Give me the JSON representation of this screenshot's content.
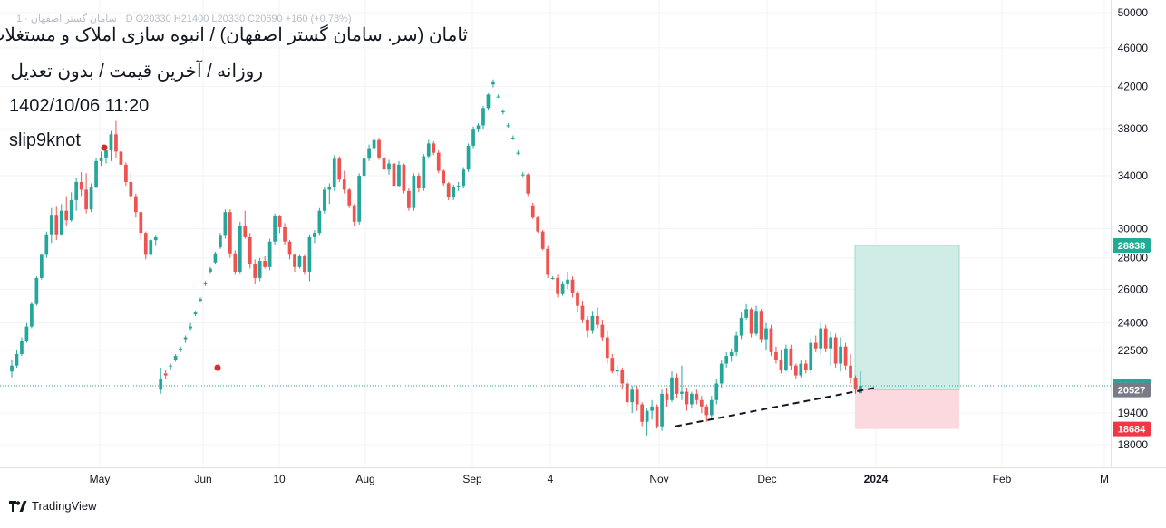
{
  "header": {
    "title": "ثامان (سر. سامان گستر اصفهان) / انبوه سازی املاک و مستغلات",
    "subtitle": "روزانه / آخرین قیمت / بدون تعدیل",
    "datetime": "1402/10/06 11:20",
    "author": "slip9knot",
    "faded_legend": "سامان گستر اصفهان · 1 · D  O20330  H21400  L20330  C20690  +160 (+0.78%)"
  },
  "brand": {
    "name": "TradingView"
  },
  "colors": {
    "up": "#26a69a",
    "down": "#ef5350",
    "target_zone": "#cfece7",
    "stop_zone": "#fcd9de",
    "target_tag": "#22ab94",
    "entry_tag": "#787b86",
    "stop_tag": "#f23645"
  },
  "chart_data": {
    "type": "candlestick",
    "scale": "log",
    "ylim": [
      17000,
      51000
    ],
    "y_ticks": [
      50000,
      46000,
      42000,
      38000,
      34000,
      30000,
      28000,
      26000,
      24000,
      22500,
      19400,
      18000
    ],
    "x_ticks": [
      "May",
      "Jun",
      "10",
      "Aug",
      "Sep",
      "4",
      "Nov",
      "Dec",
      "2024",
      "Feb",
      "M"
    ],
    "last_price": 20690,
    "position": {
      "target": 28838,
      "entry": 20527,
      "stop": 18684
    },
    "trendline": {
      "from": {
        "date": "Nov 5",
        "price": 18800
      },
      "to": {
        "date": "Dec 27",
        "price": 20600
      },
      "style": "dashed"
    },
    "candles": [
      [
        21400,
        22000,
        21100,
        21700
      ],
      [
        21700,
        22500,
        21600,
        22300
      ],
      [
        22300,
        23200,
        22200,
        23000
      ],
      [
        23000,
        24000,
        22900,
        23800
      ],
      [
        23800,
        25200,
        23700,
        25100
      ],
      [
        25100,
        26800,
        25000,
        26700
      ],
      [
        26700,
        28300,
        26600,
        28200
      ],
      [
        28200,
        29800,
        28000,
        29600
      ],
      [
        29600,
        31500,
        29000,
        31000
      ],
      [
        31000,
        31600,
        29200,
        29600
      ],
      [
        29600,
        31800,
        29500,
        31300
      ],
      [
        31300,
        32400,
        30200,
        30600
      ],
      [
        30600,
        32700,
        30500,
        32100
      ],
      [
        32100,
        33800,
        31300,
        33500
      ],
      [
        33500,
        34300,
        32400,
        32900
      ],
      [
        32900,
        34200,
        31100,
        31400
      ],
      [
        31400,
        33400,
        31200,
        33100
      ],
      [
        33100,
        35500,
        33000,
        35200
      ],
      [
        35200,
        36000,
        34800,
        35500
      ],
      [
        35500,
        36300,
        35000,
        36100
      ],
      [
        36100,
        37800,
        35200,
        37500
      ],
      [
        37500,
        38700,
        35500,
        36000
      ],
      [
        36000,
        37100,
        34800,
        34900
      ],
      [
        34900,
        35100,
        33200,
        33500
      ],
      [
        33500,
        34300,
        32100,
        32400
      ],
      [
        32400,
        32600,
        30800,
        31200
      ],
      [
        31200,
        31300,
        29200,
        29700
      ],
      [
        29700,
        29800,
        27900,
        28200
      ],
      [
        28200,
        29300,
        28100,
        29200
      ],
      [
        29200,
        29500,
        28800,
        29400
      ],
      [
        20500,
        21600,
        20300,
        21000
      ],
      [
        21300,
        21500,
        21000,
        21200
      ],
      [
        21700,
        21800,
        21500,
        21700
      ],
      [
        22000,
        22300,
        21900,
        22200
      ],
      [
        22500,
        22700,
        22400,
        22600
      ],
      [
        23100,
        23300,
        22900,
        23200
      ],
      [
        23700,
        24000,
        23600,
        23800
      ],
      [
        24500,
        24700,
        24400,
        24600
      ],
      [
        25300,
        25500,
        25200,
        25400
      ],
      [
        26300,
        26500,
        26200,
        26400
      ],
      [
        27100,
        27400,
        27000,
        27300
      ],
      [
        27700,
        28400,
        27600,
        28300
      ],
      [
        28700,
        29700,
        28600,
        29500
      ],
      [
        29500,
        31400,
        29300,
        31200
      ],
      [
        31200,
        31400,
        28000,
        28300
      ],
      [
        28300,
        28500,
        26900,
        27100
      ],
      [
        27100,
        30500,
        27000,
        30200
      ],
      [
        30200,
        31300,
        29300,
        29400
      ],
      [
        29400,
        29700,
        27300,
        27600
      ],
      [
        27600,
        27900,
        26300,
        26700
      ],
      [
        26700,
        28000,
        26500,
        27800
      ],
      [
        27800,
        28100,
        27300,
        27400
      ],
      [
        27400,
        29300,
        27200,
        29100
      ],
      [
        29100,
        31100,
        28900,
        30900
      ],
      [
        30900,
        31000,
        29700,
        30100
      ],
      [
        30100,
        30400,
        28900,
        29100
      ],
      [
        29100,
        29200,
        27900,
        28200
      ],
      [
        28200,
        28300,
        27100,
        27400
      ],
      [
        27400,
        28200,
        27300,
        28100
      ],
      [
        28100,
        28200,
        26900,
        27100
      ],
      [
        27100,
        29600,
        26500,
        29400
      ],
      [
        29400,
        29900,
        29000,
        29700
      ],
      [
        29700,
        31500,
        29500,
        31300
      ],
      [
        31300,
        33100,
        31100,
        32900
      ],
      [
        32900,
        33400,
        31800,
        33100
      ],
      [
        33100,
        35700,
        32800,
        35400
      ],
      [
        35400,
        35600,
        33500,
        33700
      ],
      [
        33700,
        34400,
        32600,
        32900
      ],
      [
        32900,
        33000,
        31500,
        31700
      ],
      [
        31700,
        31800,
        30200,
        30500
      ],
      [
        30500,
        34200,
        30300,
        34000
      ],
      [
        34000,
        35700,
        33800,
        35400
      ],
      [
        35400,
        36600,
        35200,
        36300
      ],
      [
        36300,
        37200,
        36000,
        37000
      ],
      [
        37000,
        37200,
        35300,
        35500
      ],
      [
        35500,
        35700,
        34300,
        34500
      ],
      [
        34500,
        35300,
        34100,
        35000
      ],
      [
        35000,
        35100,
        33000,
        33200
      ],
      [
        33200,
        35200,
        33100,
        34900
      ],
      [
        34900,
        35000,
        32600,
        32800
      ],
      [
        32800,
        33000,
        31300,
        31500
      ],
      [
        31500,
        34200,
        31300,
        34000
      ],
      [
        34000,
        34200,
        32700,
        33000
      ],
      [
        33000,
        35800,
        32800,
        35600
      ],
      [
        35600,
        37000,
        35400,
        36700
      ],
      [
        36700,
        36900,
        35700,
        35900
      ],
      [
        35900,
        36100,
        34200,
        34400
      ],
      [
        34400,
        34500,
        33200,
        33400
      ],
      [
        33400,
        33500,
        32100,
        32300
      ],
      [
        32300,
        33300,
        32100,
        33100
      ],
      [
        33100,
        33500,
        32800,
        33200
      ],
      [
        33200,
        34700,
        33000,
        34500
      ],
      [
        34500,
        36700,
        34300,
        36500
      ],
      [
        36500,
        38200,
        36300,
        38000
      ],
      [
        38000,
        38500,
        37700,
        38300
      ],
      [
        38300,
        40100,
        38000,
        39900
      ],
      [
        39900,
        41300,
        39700,
        41200
      ],
      [
        42200,
        42700,
        41900,
        42500
      ],
      [
        41000,
        41200,
        40900,
        41000
      ],
      [
        39500,
        39800,
        39300,
        39600
      ],
      [
        38300,
        38500,
        38100,
        38300
      ],
      [
        37200,
        37400,
        37000,
        37200
      ],
      [
        35900,
        36100,
        35700,
        35900
      ],
      [
        34100,
        34300,
        33900,
        34100
      ],
      [
        34100,
        34200,
        32400,
        32600
      ],
      [
        31700,
        31900,
        30700,
        30800
      ],
      [
        30800,
        30900,
        29700,
        29800
      ],
      [
        29800,
        29900,
        28500,
        28600
      ],
      [
        28600,
        28800,
        26700,
        26900
      ],
      [
        26700,
        26800,
        26600,
        26700
      ],
      [
        26700,
        26900,
        25500,
        25700
      ],
      [
        25700,
        26500,
        25600,
        26300
      ],
      [
        26300,
        27100,
        26000,
        26600
      ],
      [
        26600,
        26800,
        25500,
        25800
      ],
      [
        25800,
        25900,
        24600,
        25000
      ],
      [
        25000,
        25300,
        24000,
        24200
      ],
      [
        24200,
        24400,
        23200,
        23600
      ],
      [
        23600,
        24700,
        23400,
        24400
      ],
      [
        24400,
        24900,
        23700,
        23900
      ],
      [
        23900,
        24200,
        23000,
        23200
      ],
      [
        23200,
        23600,
        21800,
        22100
      ],
      [
        22100,
        22300,
        21300,
        21400
      ],
      [
        21400,
        21700,
        21200,
        21500
      ],
      [
        21500,
        21600,
        20500,
        20800
      ],
      [
        20800,
        21000,
        19700,
        19900
      ],
      [
        19900,
        20700,
        19400,
        20500
      ],
      [
        20500,
        20700,
        19500,
        19800
      ],
      [
        19800,
        19900,
        18800,
        19000
      ],
      [
        19000,
        19600,
        18400,
        19500
      ],
      [
        19500,
        20000,
        19100,
        19700
      ],
      [
        19700,
        19800,
        18700,
        18800
      ],
      [
        18800,
        20500,
        18600,
        20300
      ],
      [
        20300,
        20600,
        19700,
        20000
      ],
      [
        20000,
        21400,
        19900,
        21100
      ],
      [
        21100,
        21300,
        20100,
        20300
      ],
      [
        20300,
        21700,
        20000,
        20400
      ],
      [
        20400,
        20600,
        19500,
        19800
      ],
      [
        19800,
        20400,
        19600,
        20300
      ],
      [
        20300,
        20500,
        19800,
        20000
      ],
      [
        20000,
        20200,
        19400,
        19700
      ],
      [
        19700,
        19800,
        19000,
        19300
      ],
      [
        19300,
        20200,
        19100,
        20000
      ],
      [
        20000,
        21000,
        19800,
        20800
      ],
      [
        20800,
        22000,
        20600,
        21800
      ],
      [
        21800,
        22400,
        21600,
        22200
      ],
      [
        22200,
        22600,
        21900,
        22400
      ],
      [
        22400,
        23500,
        22200,
        23300
      ],
      [
        23300,
        24600,
        23100,
        24300
      ],
      [
        24300,
        25100,
        24200,
        24800
      ],
      [
        24800,
        24900,
        23200,
        23400
      ],
      [
        23400,
        25000,
        23300,
        24700
      ],
      [
        24700,
        24800,
        22900,
        23100
      ],
      [
        23100,
        24000,
        22500,
        23700
      ],
      [
        23700,
        23900,
        22200,
        22400
      ],
      [
        22400,
        22700,
        21800,
        22000
      ],
      [
        22000,
        22500,
        21300,
        21500
      ],
      [
        21500,
        22800,
        21400,
        22600
      ],
      [
        22600,
        22800,
        21500,
        21700
      ],
      [
        21700,
        21800,
        21000,
        21200
      ],
      [
        21200,
        22000,
        21100,
        21800
      ],
      [
        21800,
        22000,
        21300,
        21500
      ],
      [
        21500,
        23200,
        21300,
        22900
      ],
      [
        22900,
        23300,
        22400,
        22600
      ],
      [
        22600,
        24000,
        22300,
        23700
      ],
      [
        23700,
        23900,
        22400,
        22600
      ],
      [
        22600,
        23500,
        21700,
        23200
      ],
      [
        23200,
        23400,
        21600,
        21800
      ],
      [
        21800,
        23200,
        21400,
        22700
      ],
      [
        22700,
        22900,
        21500,
        21700
      ],
      [
        21700,
        22300,
        20800,
        21100
      ],
      [
        21100,
        21200,
        20300,
        20500
      ],
      [
        20330,
        21400,
        20330,
        20690
      ]
    ]
  }
}
